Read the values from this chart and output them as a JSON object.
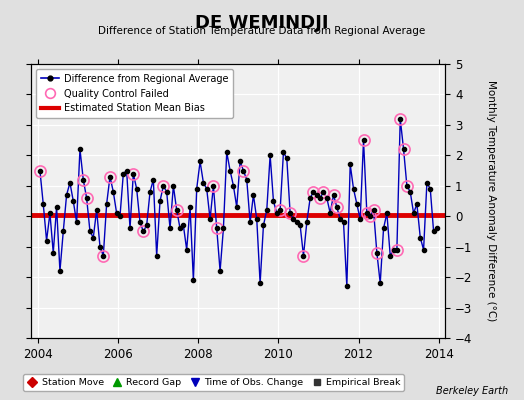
{
  "title": "DE WEMINDJI",
  "subtitle": "Difference of Station Temperature Data from Regional Average",
  "ylabel": "Monthly Temperature Anomaly Difference (°C)",
  "xlabel_bottom": "Berkeley Earth",
  "bias_value": 0.05,
  "ylim": [
    -4,
    5
  ],
  "xlim": [
    2003.83,
    2014.17
  ],
  "bg_color": "#e0e0e0",
  "plot_bg_color": "#f0f0f0",
  "line_color": "#0000bb",
  "bias_color": "#dd0000",
  "qc_color": "#ff69b4",
  "marker_color": "#000000",
  "time_series": {
    "dates": [
      2004.042,
      2004.125,
      2004.208,
      2004.292,
      2004.375,
      2004.458,
      2004.542,
      2004.625,
      2004.708,
      2004.792,
      2004.875,
      2004.958,
      2005.042,
      2005.125,
      2005.208,
      2005.292,
      2005.375,
      2005.458,
      2005.542,
      2005.625,
      2005.708,
      2005.792,
      2005.875,
      2005.958,
      2006.042,
      2006.125,
      2006.208,
      2006.292,
      2006.375,
      2006.458,
      2006.542,
      2006.625,
      2006.708,
      2006.792,
      2006.875,
      2006.958,
      2007.042,
      2007.125,
      2007.208,
      2007.292,
      2007.375,
      2007.458,
      2007.542,
      2007.625,
      2007.708,
      2007.792,
      2007.875,
      2007.958,
      2008.042,
      2008.125,
      2008.208,
      2008.292,
      2008.375,
      2008.458,
      2008.542,
      2008.625,
      2008.708,
      2008.792,
      2008.875,
      2008.958,
      2009.042,
      2009.125,
      2009.208,
      2009.292,
      2009.375,
      2009.458,
      2009.542,
      2009.625,
      2009.708,
      2009.792,
      2009.875,
      2009.958,
      2010.042,
      2010.125,
      2010.208,
      2010.292,
      2010.375,
      2010.458,
      2010.542,
      2010.625,
      2010.708,
      2010.792,
      2010.875,
      2010.958,
      2011.042,
      2011.125,
      2011.208,
      2011.292,
      2011.375,
      2011.458,
      2011.542,
      2011.625,
      2011.708,
      2011.792,
      2011.875,
      2011.958,
      2012.042,
      2012.125,
      2012.208,
      2012.292,
      2012.375,
      2012.458,
      2012.542,
      2012.625,
      2012.708,
      2012.792,
      2012.875,
      2012.958,
      2013.042,
      2013.125,
      2013.208,
      2013.292,
      2013.375,
      2013.458,
      2013.542,
      2013.625,
      2013.708,
      2013.792,
      2013.875,
      2013.958
    ],
    "values": [
      1.5,
      0.4,
      -0.8,
      0.1,
      -1.2,
      0.3,
      -1.8,
      -0.5,
      0.7,
      1.1,
      0.5,
      -0.2,
      2.2,
      1.2,
      0.6,
      -0.5,
      -0.7,
      0.2,
      -1.0,
      -1.3,
      0.4,
      1.3,
      0.8,
      0.1,
      0.0,
      1.4,
      1.5,
      -0.4,
      1.4,
      0.9,
      -0.2,
      -0.5,
      -0.3,
      0.8,
      1.2,
      -1.3,
      0.5,
      1.0,
      0.8,
      -0.4,
      1.0,
      0.2,
      -0.4,
      -0.3,
      -1.1,
      0.3,
      -2.1,
      0.9,
      1.8,
      1.1,
      0.9,
      -0.1,
      1.0,
      -0.4,
      -1.8,
      -0.4,
      2.1,
      1.5,
      1.0,
      0.3,
      1.8,
      1.5,
      1.2,
      -0.2,
      0.7,
      -0.1,
      -2.2,
      -0.3,
      0.2,
      2.0,
      0.5,
      0.1,
      0.2,
      2.1,
      1.9,
      0.1,
      -0.1,
      -0.2,
      -0.3,
      -1.3,
      -0.2,
      0.6,
      0.8,
      0.7,
      0.6,
      0.8,
      0.6,
      0.1,
      0.7,
      0.3,
      -0.1,
      -0.2,
      -2.3,
      1.7,
      0.9,
      0.4,
      -0.1,
      2.5,
      0.1,
      0.0,
      0.2,
      -1.2,
      -2.2,
      -0.4,
      0.1,
      -1.3,
      -1.1,
      -1.1,
      3.2,
      2.2,
      1.0,
      0.8,
      0.1,
      0.4,
      -0.7,
      -1.1,
      1.1,
      0.9,
      -0.5,
      -0.4
    ],
    "qc_failed_indices": [
      0,
      13,
      14,
      19,
      21,
      28,
      31,
      37,
      41,
      52,
      53,
      61,
      72,
      75,
      79,
      82,
      84,
      85,
      88,
      89,
      97,
      98,
      99,
      100,
      101,
      107,
      108,
      109,
      110
    ]
  },
  "xticks": [
    2004,
    2006,
    2008,
    2010,
    2012,
    2014
  ],
  "yticks": [
    -4,
    -3,
    -2,
    -1,
    0,
    1,
    2,
    3,
    4,
    5
  ]
}
